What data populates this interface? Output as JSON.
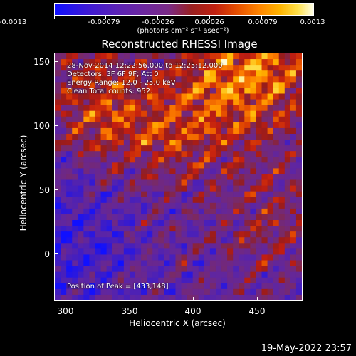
{
  "colorbar": {
    "tick_labels": [
      "-0.0013",
      "-0.00079",
      "-0.00026",
      "0.00026",
      "0.00079",
      "0.0013"
    ],
    "units": "(photons cm⁻² s⁻¹ asec⁻²)",
    "colors": [
      "#1010ff",
      "#6c27a0",
      "#c02010",
      "#ff8400",
      "#ffe04a",
      "#ffffe8"
    ]
  },
  "image": {
    "title": "Reconstructed RHESSI Image",
    "info_lines": [
      "28-Nov-2014 12:22:56.000 to 12:25:12.000",
      "Detectors: 3F 6F 9F; Att 0",
      "Energy Range: 12.0 - 25.0 keV",
      "Clean      Total counts: 952."
    ],
    "peak_label": "Position of Peak = [433,148]"
  },
  "axes": {
    "x_title": "Heliocentric X (arcsec)",
    "y_title": "Heliocentric Y (arcsec)",
    "x_ticks": [
      "300",
      "350",
      "400",
      "450"
    ],
    "y_ticks": [
      "150",
      "100",
      "50",
      "0"
    ],
    "x_range": [
      288,
      485
    ],
    "y_range": [
      -37,
      157
    ]
  },
  "footer": {
    "timestamp": "19-May-2022 23:57"
  }
}
